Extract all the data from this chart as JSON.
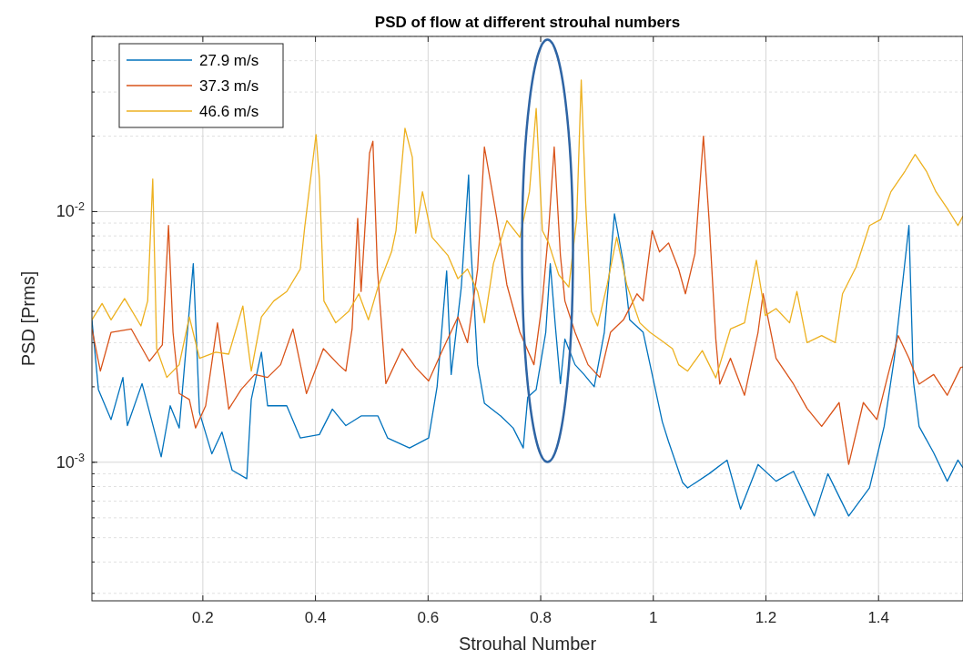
{
  "chart_data": {
    "type": "line",
    "title": "PSD of flow at different strouhal numbers",
    "xlabel": "Strouhal Number",
    "ylabel": "PSD [Prms]",
    "log": "y",
    "grid": true,
    "legend": "top left",
    "line_style": "solid",
    "marker": "none",
    "xlim": [
      0.003,
      1.55
    ],
    "xticks": [
      0.2,
      0.4,
      0.6,
      0.8,
      1,
      1.2,
      1.4
    ],
    "ylim": [
      0.00028,
      0.05
    ],
    "yticks": [
      {
        "value": 0.001,
        "label": "10$^{-3}$"
      },
      {
        "value": 0.01,
        "label": "10$^{-2}$"
      }
    ],
    "series": [
      {
        "name": "27.9 m/s",
        "color": "#0072bd",
        "x": [
          0.003,
          0.0145,
          0.037,
          0.058,
          0.066,
          0.092,
          0.107,
          0.126,
          0.142,
          0.158,
          0.183,
          0.194,
          0.216,
          0.234,
          0.252,
          0.278,
          0.286,
          0.304,
          0.315,
          0.349,
          0.373,
          0.407,
          0.43,
          0.454,
          0.481,
          0.511,
          0.528,
          0.567,
          0.601,
          0.616,
          0.633,
          0.641,
          0.659,
          0.672,
          0.675,
          0.688,
          0.7,
          0.729,
          0.751,
          0.769,
          0.777,
          0.792,
          0.809,
          0.817,
          0.826,
          0.835,
          0.843,
          0.861,
          0.877,
          0.895,
          0.913,
          0.931,
          0.947,
          0.958,
          0.982,
          0.998,
          1.016,
          1.027,
          1.052,
          1.061,
          1.099,
          1.131,
          1.155,
          1.186,
          1.218,
          1.249,
          1.286,
          1.31,
          1.347,
          1.384,
          1.41,
          1.428,
          1.454,
          1.462,
          1.472,
          1.498,
          1.522,
          1.541,
          1.55
        ],
        "values": [
          0.0037,
          0.00195,
          0.00148,
          0.00218,
          0.0014,
          0.00206,
          0.00153,
          0.00105,
          0.00168,
          0.00137,
          0.0062,
          0.00158,
          0.00108,
          0.00132,
          0.00093,
          0.00086,
          0.00178,
          0.00275,
          0.00168,
          0.00168,
          0.00125,
          0.00129,
          0.00163,
          0.0014,
          0.00153,
          0.00153,
          0.00125,
          0.00114,
          0.00125,
          0.002,
          0.0058,
          0.00224,
          0.005,
          0.014,
          0.0079,
          0.00245,
          0.00172,
          0.00153,
          0.00137,
          0.00114,
          0.00182,
          0.00195,
          0.0033,
          0.0062,
          0.0035,
          0.00206,
          0.0031,
          0.00245,
          0.00224,
          0.002,
          0.0033,
          0.0098,
          0.0062,
          0.0037,
          0.0033,
          0.00224,
          0.00145,
          0.00121,
          0.00083,
          0.00079,
          0.0009,
          0.00102,
          0.00065,
          0.00098,
          0.00084,
          0.00092,
          0.00061,
          0.0009,
          0.00061,
          0.00079,
          0.00139,
          0.0026,
          0.0088,
          0.0021,
          0.00139,
          0.00109,
          0.00084,
          0.00102,
          0.00095
        ]
      },
      {
        "name": "37.3 m/s",
        "color": "#d95319",
        "x": [
          0.003,
          0.018,
          0.037,
          0.073,
          0.105,
          0.128,
          0.139,
          0.147,
          0.158,
          0.176,
          0.187,
          0.205,
          0.226,
          0.246,
          0.268,
          0.292,
          0.315,
          0.338,
          0.36,
          0.384,
          0.414,
          0.441,
          0.454,
          0.465,
          0.475,
          0.481,
          0.496,
          0.502,
          0.51,
          0.525,
          0.554,
          0.578,
          0.601,
          0.624,
          0.653,
          0.67,
          0.688,
          0.7,
          0.711,
          0.722,
          0.74,
          0.763,
          0.788,
          0.803,
          0.814,
          0.824,
          0.835,
          0.843,
          0.861,
          0.884,
          0.905,
          0.924,
          0.947,
          0.971,
          0.982,
          0.998,
          1.011,
          1.027,
          1.045,
          1.057,
          1.074,
          1.089,
          1.099,
          1.111,
          1.118,
          1.137,
          1.162,
          1.186,
          1.195,
          1.218,
          1.249,
          1.273,
          1.299,
          1.33,
          1.347,
          1.373,
          1.397,
          1.417,
          1.435,
          1.454,
          1.472,
          1.498,
          1.522,
          1.546,
          1.55
        ],
        "values": [
          0.0034,
          0.00231,
          0.0033,
          0.0034,
          0.00253,
          0.00294,
          0.0088,
          0.0033,
          0.00188,
          0.00178,
          0.00137,
          0.00168,
          0.0036,
          0.00163,
          0.00195,
          0.00224,
          0.00218,
          0.00245,
          0.0034,
          0.00188,
          0.00284,
          0.00245,
          0.00231,
          0.0034,
          0.0094,
          0.0048,
          0.0171,
          0.0191,
          0.0059,
          0.00206,
          0.00284,
          0.00239,
          0.00211,
          0.00275,
          0.0038,
          0.003,
          0.0059,
          0.0181,
          0.0131,
          0.0094,
          0.0051,
          0.0033,
          0.00245,
          0.0044,
          0.0084,
          0.0181,
          0.0067,
          0.0044,
          0.0033,
          0.00245,
          0.00218,
          0.0033,
          0.0037,
          0.0047,
          0.0044,
          0.0084,
          0.0069,
          0.0075,
          0.0059,
          0.0047,
          0.0068,
          0.02,
          0.0093,
          0.0031,
          0.00205,
          0.0026,
          0.00185,
          0.0033,
          0.0047,
          0.0026,
          0.00205,
          0.00164,
          0.00139,
          0.00173,
          0.00098,
          0.00173,
          0.00148,
          0.00224,
          0.0032,
          0.0026,
          0.00205,
          0.00224,
          0.00185,
          0.00239,
          0.0024
        ]
      },
      {
        "name": "46.6 m/s",
        "color": "#edb120",
        "x": [
          0.003,
          0.021,
          0.037,
          0.061,
          0.09,
          0.102,
          0.111,
          0.118,
          0.136,
          0.158,
          0.176,
          0.194,
          0.223,
          0.246,
          0.271,
          0.286,
          0.304,
          0.326,
          0.349,
          0.373,
          0.381,
          0.401,
          0.407,
          0.415,
          0.436,
          0.459,
          0.477,
          0.494,
          0.511,
          0.535,
          0.543,
          0.559,
          0.572,
          0.578,
          0.59,
          0.607,
          0.635,
          0.653,
          0.67,
          0.688,
          0.7,
          0.716,
          0.74,
          0.763,
          0.78,
          0.792,
          0.803,
          0.814,
          0.832,
          0.85,
          0.864,
          0.872,
          0.88,
          0.89,
          0.901,
          0.918,
          0.935,
          0.953,
          0.976,
          0.994,
          1.011,
          1.034,
          1.045,
          1.061,
          1.087,
          1.111,
          1.137,
          1.162,
          1.183,
          1.199,
          1.218,
          1.242,
          1.255,
          1.273,
          1.299,
          1.323,
          1.336,
          1.36,
          1.384,
          1.404,
          1.422,
          1.447,
          1.465,
          1.485,
          1.502,
          1.522,
          1.541,
          1.55
        ],
        "values": [
          0.0037,
          0.0043,
          0.0037,
          0.0045,
          0.0035,
          0.0044,
          0.0135,
          0.00284,
          0.00218,
          0.00245,
          0.0038,
          0.0026,
          0.00275,
          0.0027,
          0.0042,
          0.00231,
          0.0038,
          0.0044,
          0.0048,
          0.0059,
          0.0087,
          0.0203,
          0.0135,
          0.0044,
          0.0036,
          0.004,
          0.0047,
          0.0037,
          0.005,
          0.0069,
          0.0084,
          0.0215,
          0.0165,
          0.0082,
          0.012,
          0.0079,
          0.0067,
          0.0054,
          0.0059,
          0.0048,
          0.0036,
          0.0062,
          0.0092,
          0.0079,
          0.012,
          0.0258,
          0.0084,
          0.0075,
          0.0056,
          0.005,
          0.0094,
          0.0335,
          0.0107,
          0.004,
          0.0035,
          0.0051,
          0.0079,
          0.0051,
          0.0036,
          0.0033,
          0.0031,
          0.00284,
          0.00245,
          0.00231,
          0.00279,
          0.00217,
          0.0034,
          0.0036,
          0.0064,
          0.00385,
          0.0041,
          0.0036,
          0.0048,
          0.003,
          0.0032,
          0.003,
          0.0047,
          0.006,
          0.0088,
          0.0093,
          0.012,
          0.0145,
          0.0169,
          0.0145,
          0.012,
          0.0103,
          0.0088,
          0.0096
        ]
      }
    ]
  }
}
